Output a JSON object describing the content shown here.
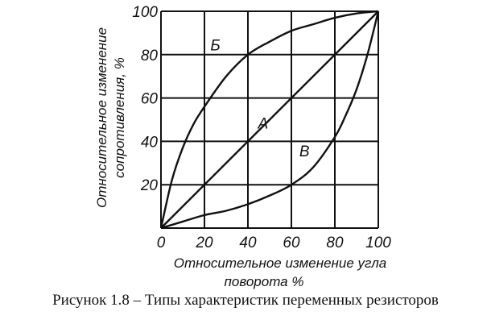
{
  "caption": "Рисунок 1.8 –  Типы характеристик переменных резисторов",
  "chart_data": {
    "type": "line",
    "xlabel_line1": "Относительное изменение угла",
    "xlabel_line2": "поворота %",
    "ylabel_line1": "Относительное изменение",
    "ylabel_line2": "сопротивления, %",
    "xlim": [
      0,
      100
    ],
    "ylim": [
      0,
      100
    ],
    "grid": true,
    "x_ticks": [
      "0",
      "20",
      "40",
      "60",
      "80",
      "100"
    ],
    "y_ticks": [
      "20",
      "40",
      "60",
      "80",
      "100"
    ],
    "series": [
      {
        "name": "А",
        "x": [
          0,
          100
        ],
        "y": [
          0,
          100
        ]
      },
      {
        "name": "Б",
        "x": [
          0,
          5,
          10,
          15,
          20,
          30,
          40,
          50,
          60,
          70,
          80,
          90,
          100
        ],
        "y": [
          0,
          22,
          37,
          48,
          56,
          70,
          80,
          86,
          91,
          94,
          97,
          99,
          100
        ]
      },
      {
        "name": "В",
        "x": [
          0,
          10,
          20,
          30,
          40,
          50,
          60,
          70,
          80,
          85,
          90,
          95,
          100
        ],
        "y": [
          0,
          3,
          6,
          8,
          11,
          15,
          20,
          28,
          42,
          52,
          64,
          80,
          100
        ]
      }
    ]
  }
}
